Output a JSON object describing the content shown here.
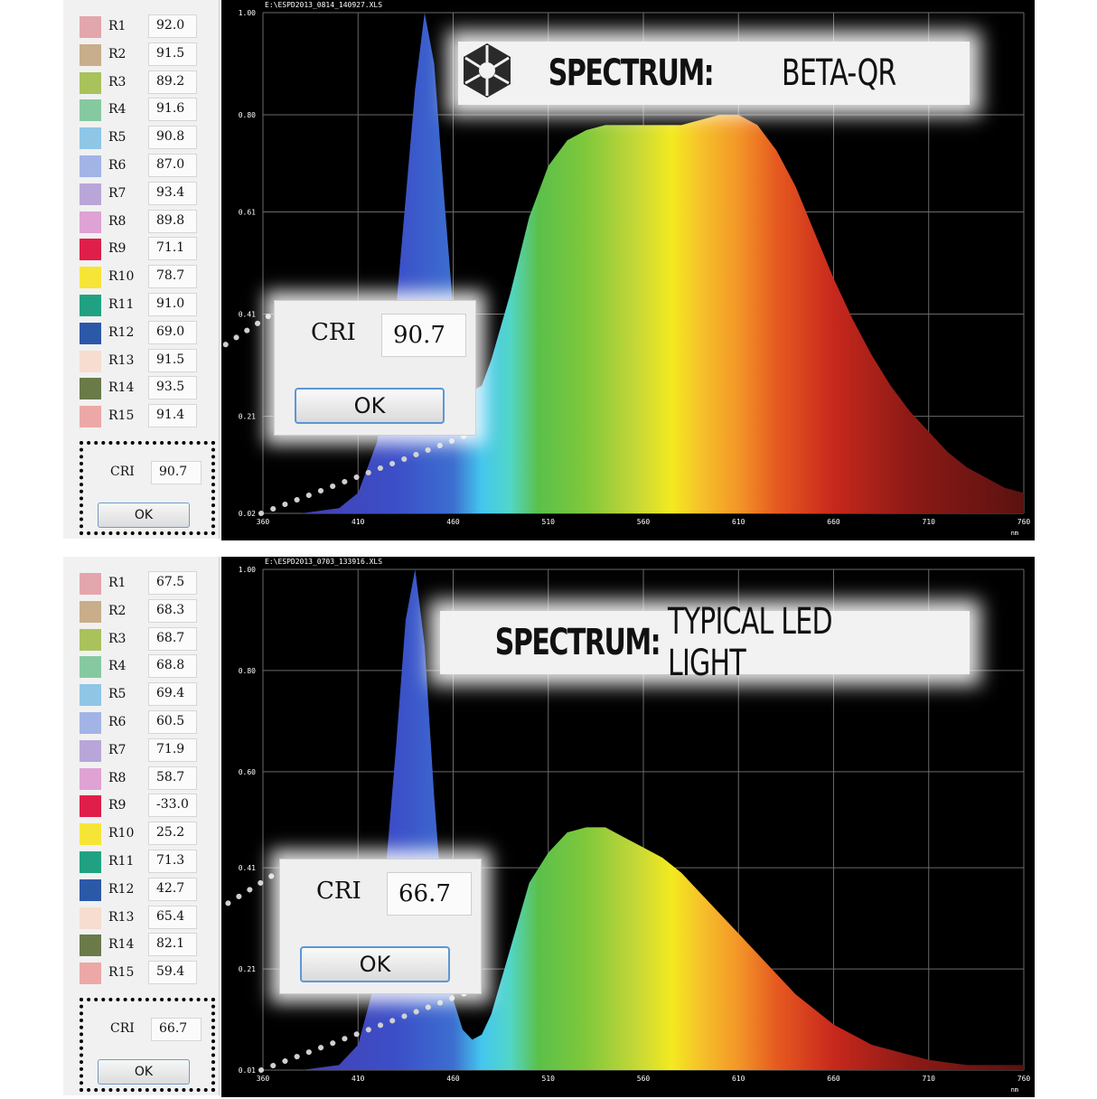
{
  "colors": {
    "swatches": [
      "#e3a6ac",
      "#c8ae8a",
      "#a9c25c",
      "#86c9a0",
      "#8fc6e6",
      "#a2b4e6",
      "#b9a6d8",
      "#dea2d3",
      "#e01e4a",
      "#f6e537",
      "#20a282",
      "#2c58a8",
      "#f6ddd0",
      "#6a7a48",
      "#eca8a6"
    ],
    "chart_bg": "#000000",
    "grid": "#6a6a6a"
  },
  "panels": [
    {
      "cri_rows": [
        {
          "label": "R1",
          "value": "92.0"
        },
        {
          "label": "R2",
          "value": "91.5"
        },
        {
          "label": "R3",
          "value": "89.2"
        },
        {
          "label": "R4",
          "value": "91.6"
        },
        {
          "label": "R5",
          "value": "90.8"
        },
        {
          "label": "R6",
          "value": "87.0"
        },
        {
          "label": "R7",
          "value": "93.4"
        },
        {
          "label": "R8",
          "value": "89.8"
        },
        {
          "label": "R9",
          "value": "71.1"
        },
        {
          "label": "R10",
          "value": "78.7"
        },
        {
          "label": "R11",
          "value": "91.0"
        },
        {
          "label": "R12",
          "value": "69.0"
        },
        {
          "label": "R13",
          "value": "91.5"
        },
        {
          "label": "R14",
          "value": "93.5"
        },
        {
          "label": "R15",
          "value": "91.4"
        }
      ],
      "mini_cri_label": "CRI",
      "mini_cri_value": "90.7",
      "mini_ok": "OK",
      "dialog_cri_label": "CRI",
      "dialog_cri_value": "90.7",
      "dialog_ok": "OK",
      "file_name": "E:\\ESPD2013_0814_140927.XLS",
      "banner_bold": "SPECTRUM:",
      "banner_rest": "BETA-QR",
      "banner_logo": "hexagon-aperture-logo"
    },
    {
      "cri_rows": [
        {
          "label": "R1",
          "value": "67.5"
        },
        {
          "label": "R2",
          "value": "68.3"
        },
        {
          "label": "R3",
          "value": "68.7"
        },
        {
          "label": "R4",
          "value": "68.8"
        },
        {
          "label": "R5",
          "value": "69.4"
        },
        {
          "label": "R6",
          "value": "60.5"
        },
        {
          "label": "R7",
          "value": "71.9"
        },
        {
          "label": "R8",
          "value": "58.7"
        },
        {
          "label": "R9",
          "value": "-33.0"
        },
        {
          "label": "R10",
          "value": "25.2"
        },
        {
          "label": "R11",
          "value": "71.3"
        },
        {
          "label": "R12",
          "value": "42.7"
        },
        {
          "label": "R13",
          "value": "65.4"
        },
        {
          "label": "R14",
          "value": "82.1"
        },
        {
          "label": "R15",
          "value": "59.4"
        }
      ],
      "mini_cri_label": "CRI",
      "mini_cri_value": "66.7",
      "mini_ok": "OK",
      "dialog_cri_label": "CRI",
      "dialog_cri_value": "66.7",
      "dialog_ok": "OK",
      "file_name": "E:\\ESPD2013_0703_133916.XLS",
      "banner_bold": "SPECTRUM:",
      "banner_rest": "TYPICAL LED LIGHT",
      "banner_logo": ""
    }
  ],
  "chart_data": [
    {
      "type": "area",
      "xlabel": "nm",
      "xlim": [
        360,
        760
      ],
      "ylim": [
        0.02,
        1.0
      ],
      "x_ticks": [
        "360",
        "410",
        "460",
        "510",
        "560",
        "610",
        "660",
        "710",
        "760"
      ],
      "y_ticks": [
        "0.02",
        "0.21",
        "0.41",
        "0.61",
        "0.80",
        "1.00"
      ],
      "x": [
        360,
        380,
        400,
        410,
        420,
        430,
        440,
        445,
        450,
        455,
        460,
        465,
        470,
        475,
        480,
        490,
        500,
        510,
        520,
        530,
        540,
        550,
        560,
        570,
        580,
        590,
        600,
        610,
        620,
        630,
        640,
        650,
        660,
        670,
        680,
        690,
        700,
        710,
        720,
        730,
        740,
        750,
        760
      ],
      "y": [
        0.02,
        0.02,
        0.03,
        0.06,
        0.16,
        0.42,
        0.85,
        1.0,
        0.9,
        0.65,
        0.42,
        0.3,
        0.26,
        0.27,
        0.32,
        0.45,
        0.6,
        0.7,
        0.75,
        0.77,
        0.78,
        0.78,
        0.78,
        0.78,
        0.78,
        0.79,
        0.8,
        0.8,
        0.78,
        0.73,
        0.66,
        0.57,
        0.48,
        0.4,
        0.33,
        0.27,
        0.22,
        0.18,
        0.14,
        0.11,
        0.09,
        0.07,
        0.06
      ]
    },
    {
      "type": "area",
      "xlabel": "nm",
      "xlim": [
        360,
        760
      ],
      "ylim": [
        0.01,
        1.0
      ],
      "x_ticks": [
        "360",
        "410",
        "460",
        "510",
        "560",
        "610",
        "660",
        "710",
        "760"
      ],
      "y_ticks": [
        "0.01",
        "0.21",
        "0.41",
        "0.60",
        "0.80",
        "1.00"
      ],
      "x": [
        360,
        380,
        400,
        410,
        420,
        430,
        435,
        440,
        445,
        450,
        455,
        460,
        465,
        470,
        475,
        480,
        490,
        500,
        510,
        520,
        530,
        540,
        550,
        560,
        570,
        580,
        590,
        600,
        610,
        620,
        630,
        640,
        650,
        660,
        670,
        680,
        690,
        700,
        710,
        720,
        730,
        740,
        750,
        760
      ],
      "y": [
        0.01,
        0.01,
        0.02,
        0.06,
        0.2,
        0.65,
        0.9,
        1.0,
        0.85,
        0.55,
        0.3,
        0.15,
        0.09,
        0.07,
        0.08,
        0.12,
        0.25,
        0.38,
        0.44,
        0.48,
        0.49,
        0.49,
        0.47,
        0.45,
        0.43,
        0.4,
        0.36,
        0.32,
        0.28,
        0.24,
        0.2,
        0.16,
        0.13,
        0.1,
        0.08,
        0.06,
        0.05,
        0.04,
        0.03,
        0.025,
        0.02,
        0.02,
        0.02,
        0.02
      ]
    }
  ]
}
